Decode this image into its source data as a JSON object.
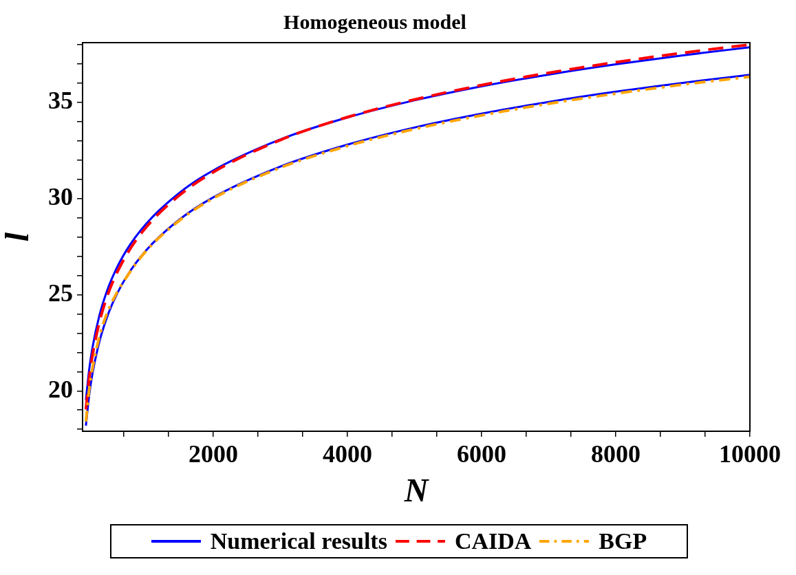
{
  "chart_data": {
    "type": "line",
    "title": "Homogeneous model",
    "xlabel": "N",
    "ylabel": "l",
    "x": [
      100,
      150,
      200,
      300,
      400,
      500,
      700,
      1000,
      1500,
      2000,
      3000,
      4000,
      5000,
      6000,
      7000,
      8000,
      9000,
      10000
    ],
    "series": [
      {
        "name": "Numerical results",
        "color": "#0000ff",
        "line_style": "solid",
        "values": [
          19.53,
          21.14,
          22.29,
          23.9,
          25.05,
          25.94,
          27.28,
          28.69,
          30.31,
          31.46,
          33.07,
          34.21,
          35.1,
          35.83,
          36.44,
          36.97,
          37.44,
          37.86
        ]
      },
      {
        "color": "#0000ff",
        "line_style": "solid",
        "values": [
          18.19,
          19.8,
          20.94,
          22.54,
          23.68,
          24.57,
          25.9,
          27.31,
          28.92,
          30.06,
          31.66,
          32.8,
          33.69,
          34.41,
          35.02,
          35.55,
          36.01,
          36.43
        ]
      },
      {
        "name": "CAIDA",
        "color": "#ff0000",
        "line_style": "dashed",
        "values": [
          19.03,
          20.7,
          21.88,
          23.55,
          24.74,
          25.66,
          27.04,
          28.51,
          30.18,
          31.37,
          33.04,
          34.23,
          35.14,
          35.89,
          36.53,
          37.08,
          37.57,
          38.0
        ]
      },
      {
        "name": "BGP",
        "color": "#ffa500",
        "line_style": "dashdot",
        "values": [
          18.4,
          20.1,
          21.2,
          22.8,
          23.9,
          24.7,
          25.88,
          27.28,
          28.87,
          30.01,
          31.6,
          32.73,
          33.61,
          34.32,
          34.93,
          35.45,
          35.92,
          36.33
        ]
      }
    ],
    "xlim": [
      50,
      10000
    ],
    "xticks": [
      {
        "value": 666.7,
        "label": null
      },
      {
        "value": 1333.3,
        "label": null
      },
      2000,
      {
        "value": 2666.7,
        "label": null
      },
      {
        "value": 3333.3,
        "label": null
      },
      4000,
      {
        "value": 4666.7,
        "label": null
      },
      {
        "value": 5333.3,
        "label": null
      },
      6000,
      {
        "value": 6666.7,
        "label": null
      },
      {
        "value": 7333.3,
        "label": null
      },
      8000,
      {
        "value": 8666.7,
        "label": null
      },
      {
        "value": 9333.3,
        "label": null
      },
      10000
    ],
    "ylim": [
      17.9,
      38.1
    ],
    "yticks": [
      {
        "value": 18,
        "label": null
      },
      {
        "value": 19,
        "label": null
      },
      20,
      {
        "value": 21,
        "label": null
      },
      {
        "value": 22,
        "label": null
      },
      {
        "value": 23,
        "label": null
      },
      {
        "value": 24,
        "label": null
      },
      25,
      {
        "value": 26,
        "label": null
      },
      {
        "value": 27,
        "label": null
      },
      {
        "value": 28,
        "label": null
      },
      {
        "value": 29,
        "label": null
      },
      30,
      {
        "value": 31,
        "label": null
      },
      {
        "value": 32,
        "label": null
      },
      {
        "value": 33,
        "label": null
      },
      {
        "value": 34,
        "label": null
      },
      35,
      {
        "value": 36,
        "label": null
      },
      {
        "value": 37,
        "label": null
      },
      {
        "value": 38,
        "label": null
      }
    ],
    "grid": false,
    "legend": "bottom",
    "marker": "none"
  }
}
